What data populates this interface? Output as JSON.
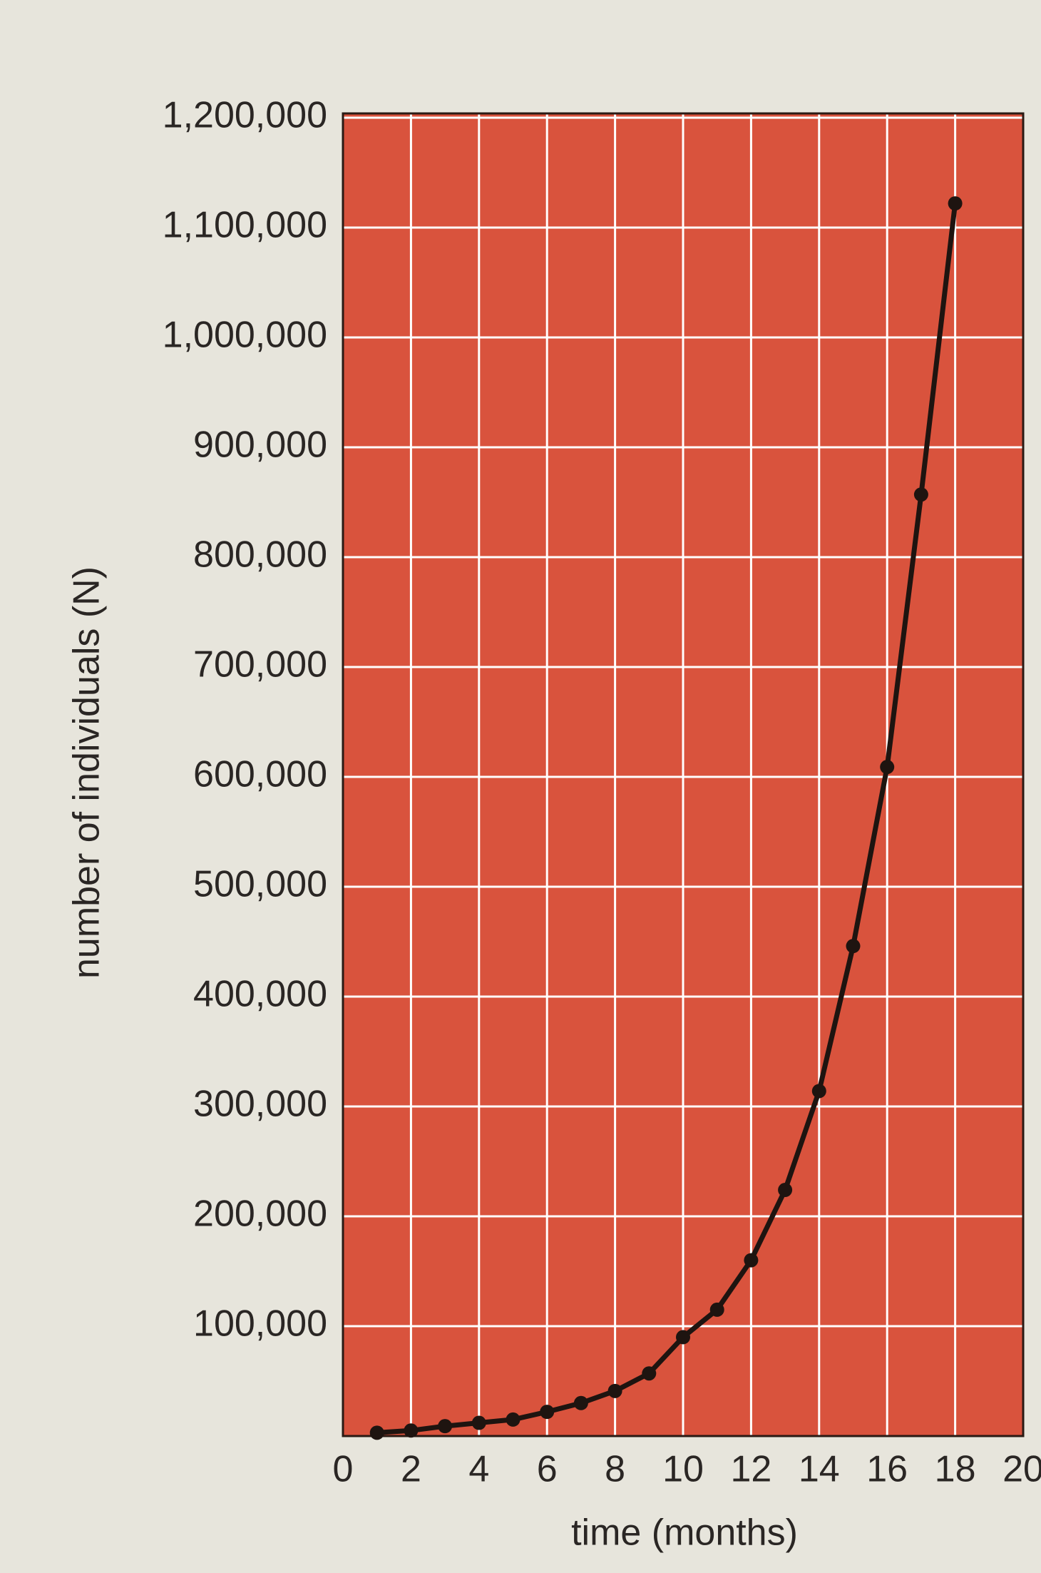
{
  "chart_data": {
    "type": "line",
    "x_label": "time (months)",
    "y_label": "number of individuals (N)",
    "x": [
      1,
      2,
      3,
      4,
      5,
      6,
      7,
      8,
      9,
      10,
      11,
      12,
      13,
      14,
      15,
      16,
      17,
      18
    ],
    "values": [
      3000,
      5000,
      9000,
      12000,
      15000,
      22000,
      30000,
      41000,
      57000,
      90000,
      115000,
      160000,
      224000,
      314000,
      446000,
      609000,
      857000,
      1122000
    ],
    "color": "#1e1410",
    "background": "#d9533d",
    "xlim": [
      0,
      20
    ],
    "xticks": [
      0,
      2,
      4,
      6,
      8,
      10,
      12,
      14,
      16,
      18,
      20
    ],
    "ylim": [
      0,
      1200000
    ],
    "yticks": [
      {
        "value": 100000,
        "label": "100,000"
      },
      {
        "value": 200000,
        "label": "200,000"
      },
      {
        "value": 300000,
        "label": "300,000"
      },
      {
        "value": 400000,
        "label": "400,000"
      },
      {
        "value": 500000,
        "label": "500,000"
      },
      {
        "value": 600000,
        "label": "600,000"
      },
      {
        "value": 700000,
        "label": "700,000"
      },
      {
        "value": 800000,
        "label": "800,000"
      },
      {
        "value": 900000,
        "label": "900,000"
      },
      {
        "value": 1000000,
        "label": "1,000,000"
      },
      {
        "value": 1100000,
        "label": "1,100,000"
      },
      {
        "value": 1200000,
        "label": "1,200,000"
      }
    ],
    "grid": true
  }
}
